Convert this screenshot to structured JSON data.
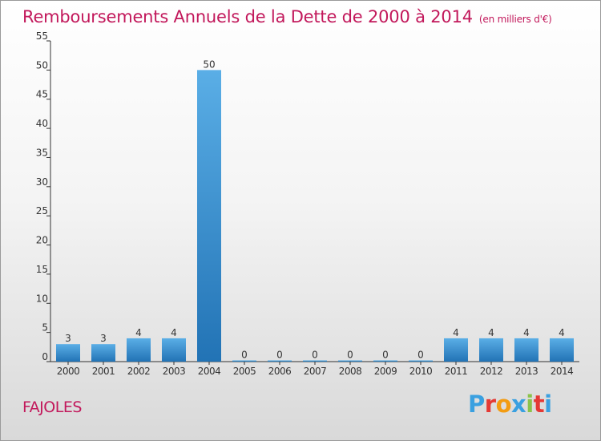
{
  "header": {
    "title": "Remboursements Annuels de la Dette de 2000 à 2014",
    "subtitle": "(en milliers d'€)"
  },
  "footer": {
    "commune": "FAJOLES",
    "brand": "Proxiti",
    "brand_colors": [
      "#3aa0e0",
      "#e53935",
      "#f39c12",
      "#3aa0e0",
      "#8bc34a",
      "#e53935",
      "#3aa0e0"
    ]
  },
  "chart_data": {
    "type": "bar",
    "categories": [
      "2000",
      "2001",
      "2002",
      "2003",
      "2004",
      "2005",
      "2006",
      "2007",
      "2008",
      "2009",
      "2010",
      "2011",
      "2012",
      "2013",
      "2014"
    ],
    "values": [
      3,
      3,
      4,
      4,
      50,
      0,
      0,
      0,
      0,
      0,
      0,
      4,
      4,
      4,
      4
    ],
    "ylim": [
      0,
      55
    ],
    "yticks": [
      0,
      5,
      10,
      15,
      20,
      25,
      30,
      35,
      40,
      45,
      50,
      55
    ],
    "grid": false,
    "data_labels": true,
    "colors": {
      "bar_light": "#5aaee6",
      "bar_dark": "#2273b5",
      "axis": "#333333"
    }
  }
}
